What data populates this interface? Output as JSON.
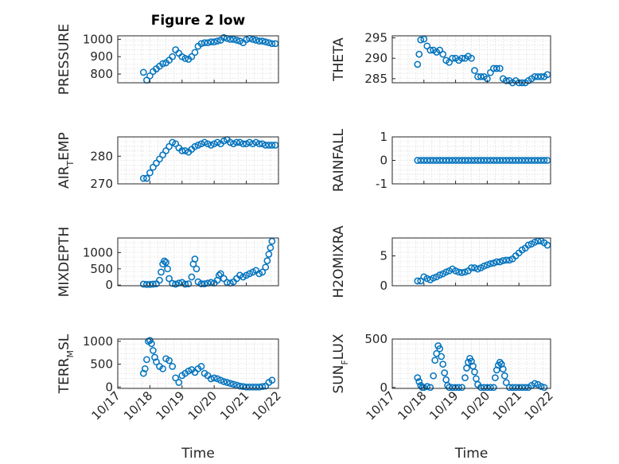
{
  "figure": {
    "title": "Figure 2 low"
  },
  "colors": {
    "marker": "#0072BD",
    "axis": "#262626",
    "grid": "#dcdcdc",
    "background": "#ffffff"
  },
  "chart_data": [
    {
      "id": "pressure",
      "type": "scatter",
      "title": "Figure 2 low",
      "ylabel": "PRESSURE",
      "xlim": [
        0,
        5
      ],
      "ylim": [
        750,
        1020
      ],
      "yticks": [
        800,
        900,
        1000
      ],
      "xticklabels": [],
      "xlabel": "",
      "x": [
        0.8,
        0.9,
        1.0,
        1.1,
        1.2,
        1.3,
        1.4,
        1.5,
        1.6,
        1.7,
        1.8,
        1.9,
        2.0,
        2.1,
        2.2,
        2.3,
        2.4,
        2.5,
        2.6,
        2.7,
        2.8,
        2.9,
        3.0,
        3.1,
        3.2,
        3.3,
        3.4,
        3.5,
        3.6,
        3.7,
        3.8,
        3.9,
        4.0,
        4.1,
        4.2,
        4.3,
        4.4,
        4.5,
        4.6,
        4.7,
        4.8,
        4.9
      ],
      "y": [
        810,
        765,
        790,
        815,
        830,
        845,
        860,
        865,
        880,
        900,
        940,
        920,
        900,
        890,
        885,
        900,
        925,
        960,
        975,
        980,
        980,
        985,
        985,
        990,
        995,
        1010,
        1005,
        1000,
        1000,
        995,
        990,
        980,
        998,
        1005,
        1000,
        995,
        990,
        990,
        985,
        980,
        975,
        975
      ]
    },
    {
      "id": "theta",
      "type": "scatter",
      "ylabel": "THETA",
      "xlim": [
        0,
        5
      ],
      "ylim": [
        284,
        295.5
      ],
      "yticks": [
        285,
        290,
        295
      ],
      "xticklabels": [],
      "xlabel": "",
      "x": [
        0.8,
        0.85,
        0.9,
        1.0,
        1.1,
        1.2,
        1.3,
        1.4,
        1.5,
        1.6,
        1.7,
        1.8,
        1.9,
        2.0,
        2.1,
        2.2,
        2.3,
        2.4,
        2.5,
        2.6,
        2.7,
        2.8,
        2.9,
        3.0,
        3.1,
        3.2,
        3.3,
        3.4,
        3.5,
        3.6,
        3.7,
        3.8,
        3.9,
        4.0,
        4.1,
        4.2,
        4.3,
        4.4,
        4.5,
        4.6,
        4.7,
        4.8,
        4.9
      ],
      "y": [
        288.5,
        291,
        294.5,
        294.7,
        293,
        292,
        292,
        291.5,
        292,
        291,
        289.5,
        289,
        290,
        290,
        289.5,
        290,
        290,
        290.5,
        290,
        287,
        285.5,
        285.5,
        285.5,
        285,
        286.5,
        287.5,
        287.5,
        287.5,
        285,
        284.5,
        284.5,
        284,
        284.5,
        284,
        284,
        284,
        284.5,
        285,
        285.5,
        285.5,
        285.5,
        285.5,
        286
      ]
    },
    {
      "id": "air_temp",
      "type": "scatter",
      "ylabel": "AIR",
      "ylabel_sub": "T",
      "ylabel_tail": "EMP",
      "xlim": [
        0,
        5
      ],
      "ylim": [
        270,
        287
      ],
      "yticks": [
        270,
        280
      ],
      "xticklabels": [],
      "xlabel": "",
      "x": [
        0.8,
        0.9,
        1.0,
        1.1,
        1.2,
        1.3,
        1.4,
        1.5,
        1.6,
        1.7,
        1.8,
        1.9,
        2.0,
        2.1,
        2.2,
        2.3,
        2.4,
        2.5,
        2.6,
        2.7,
        2.8,
        2.9,
        3.0,
        3.1,
        3.2,
        3.3,
        3.4,
        3.5,
        3.6,
        3.7,
        3.8,
        3.9,
        4.0,
        4.1,
        4.2,
        4.3,
        4.4,
        4.5,
        4.6,
        4.7,
        4.8,
        4.9
      ],
      "y": [
        272,
        272,
        274,
        276,
        277.5,
        279,
        280.5,
        282,
        283.5,
        285,
        284.5,
        283,
        282,
        282,
        281.5,
        282.5,
        283.5,
        284,
        284.5,
        285,
        284.5,
        284,
        284.5,
        285,
        284.5,
        285.5,
        286,
        285,
        284.5,
        285,
        285,
        284.5,
        284.5,
        285,
        284.5,
        285,
        284.5,
        284.5,
        284,
        284,
        284,
        284
      ]
    },
    {
      "id": "rainfall",
      "type": "scatter",
      "ylabel": "RAINFALL",
      "xlim": [
        0,
        5
      ],
      "ylim": [
        -1,
        1
      ],
      "yticks": [
        -1,
        0,
        1
      ],
      "xticklabels": [],
      "xlabel": "",
      "x": [
        0.8,
        0.9,
        1.0,
        1.1,
        1.2,
        1.3,
        1.4,
        1.5,
        1.6,
        1.7,
        1.8,
        1.9,
        2.0,
        2.1,
        2.2,
        2.3,
        2.4,
        2.5,
        2.6,
        2.7,
        2.8,
        2.9,
        3.0,
        3.1,
        3.2,
        3.3,
        3.4,
        3.5,
        3.6,
        3.7,
        3.8,
        3.9,
        4.0,
        4.1,
        4.2,
        4.3,
        4.4,
        4.5,
        4.6,
        4.7,
        4.8,
        4.9
      ],
      "y": [
        0,
        0,
        0,
        0,
        0,
        0,
        0,
        0,
        0,
        0,
        0,
        0,
        0,
        0,
        0,
        0,
        0,
        0,
        0,
        0,
        0,
        0,
        0,
        0,
        0,
        0,
        0,
        0,
        0,
        0,
        0,
        0,
        0,
        0,
        0,
        0,
        0,
        0,
        0,
        0,
        0,
        0
      ]
    },
    {
      "id": "mixdepth",
      "type": "scatter",
      "ylabel": "MIXDEPTH",
      "xlim": [
        0,
        5
      ],
      "ylim": [
        -20,
        1450
      ],
      "yticks": [
        0,
        500,
        1000
      ],
      "xticklabels": [],
      "xlabel": "",
      "x": [
        0.8,
        0.9,
        1.0,
        1.1,
        1.2,
        1.3,
        1.35,
        1.4,
        1.45,
        1.5,
        1.55,
        1.6,
        1.7,
        1.8,
        1.9,
        2.0,
        2.1,
        2.2,
        2.3,
        2.35,
        2.4,
        2.45,
        2.5,
        2.6,
        2.7,
        2.8,
        2.9,
        3.0,
        3.1,
        3.15,
        3.2,
        3.3,
        3.4,
        3.5,
        3.6,
        3.7,
        3.8,
        3.9,
        4.0,
        4.1,
        4.2,
        4.3,
        4.4,
        4.5,
        4.6,
        4.65,
        4.7,
        4.75,
        4.8
      ],
      "y": [
        30,
        20,
        20,
        30,
        40,
        150,
        400,
        650,
        740,
        700,
        500,
        200,
        50,
        30,
        60,
        80,
        30,
        40,
        250,
        650,
        800,
        500,
        100,
        40,
        40,
        60,
        80,
        60,
        150,
        300,
        350,
        200,
        80,
        60,
        100,
        200,
        300,
        250,
        300,
        350,
        400,
        450,
        350,
        400,
        550,
        750,
        950,
        1150,
        1350
      ]
    },
    {
      "id": "h2omixra",
      "type": "scatter",
      "ylabel": "H2OMIXRA",
      "xlim": [
        0,
        5
      ],
      "ylim": [
        0,
        8
      ],
      "yticks": [
        0,
        5
      ],
      "xticklabels": [],
      "xlabel": "",
      "x": [
        0.8,
        0.9,
        1.0,
        1.1,
        1.2,
        1.3,
        1.4,
        1.5,
        1.6,
        1.7,
        1.8,
        1.9,
        2.0,
        2.1,
        2.2,
        2.3,
        2.4,
        2.5,
        2.6,
        2.7,
        2.8,
        2.9,
        3.0,
        3.1,
        3.2,
        3.3,
        3.4,
        3.5,
        3.6,
        3.7,
        3.8,
        3.9,
        4.0,
        4.1,
        4.2,
        4.3,
        4.4,
        4.5,
        4.6,
        4.7,
        4.8,
        4.9
      ],
      "y": [
        0.8,
        0.8,
        1.5,
        1.2,
        1.0,
        1.3,
        1.5,
        1.8,
        2.0,
        2.3,
        2.5,
        2.8,
        2.5,
        2.3,
        2.2,
        2.3,
        2.5,
        3.0,
        3.0,
        2.8,
        3.0,
        3.3,
        3.5,
        3.7,
        3.8,
        4.0,
        4.0,
        4.2,
        4.3,
        4.3,
        4.5,
        5.0,
        5.5,
        6.0,
        6.3,
        6.8,
        7.0,
        7.3,
        7.5,
        7.5,
        7.2,
        6.8
      ]
    },
    {
      "id": "terr_msl",
      "type": "scatter",
      "ylabel": "TERR",
      "ylabel_sub": "M",
      "ylabel_tail": "SL",
      "xlim": [
        0,
        5
      ],
      "ylim": [
        -30,
        1050
      ],
      "yticks": [
        0,
        500,
        1000
      ],
      "xticklabels": [
        "10/17",
        "10/18",
        "10/19",
        "10/20",
        "10/21",
        "10/22"
      ],
      "xlabel": "Time",
      "x": [
        0.8,
        0.85,
        0.9,
        0.95,
        1.0,
        1.05,
        1.1,
        1.15,
        1.2,
        1.3,
        1.4,
        1.5,
        1.6,
        1.7,
        1.8,
        1.9,
        2.0,
        2.1,
        2.2,
        2.3,
        2.4,
        2.5,
        2.6,
        2.7,
        2.8,
        2.9,
        3.0,
        3.1,
        3.2,
        3.3,
        3.4,
        3.5,
        3.6,
        3.7,
        3.8,
        3.9,
        4.0,
        4.1,
        4.2,
        4.3,
        4.4,
        4.5,
        4.6,
        4.7,
        4.8
      ],
      "y": [
        300,
        400,
        600,
        1000,
        1020,
        950,
        800,
        650,
        550,
        450,
        400,
        620,
        580,
        450,
        200,
        100,
        250,
        300,
        350,
        380,
        320,
        400,
        450,
        300,
        250,
        180,
        200,
        180,
        150,
        120,
        100,
        80,
        60,
        40,
        20,
        10,
        0,
        0,
        0,
        0,
        0,
        10,
        20,
        100,
        150
      ]
    },
    {
      "id": "sun_flux",
      "type": "scatter",
      "ylabel": "SUN",
      "ylabel_sub": "F",
      "ylabel_tail": "LUX",
      "xlim": [
        0,
        5
      ],
      "ylim": [
        -10,
        500
      ],
      "yticks": [
        0,
        500
      ],
      "xticklabels": [
        "10/17",
        "10/18",
        "10/19",
        "10/20",
        "10/21",
        "10/22"
      ],
      "xlabel": "Time",
      "x": [
        0.8,
        0.85,
        0.9,
        0.95,
        1.0,
        1.1,
        1.2,
        1.3,
        1.35,
        1.4,
        1.45,
        1.5,
        1.55,
        1.6,
        1.65,
        1.7,
        1.75,
        1.8,
        1.9,
        2.0,
        2.1,
        2.2,
        2.3,
        2.35,
        2.4,
        2.45,
        2.5,
        2.55,
        2.6,
        2.65,
        2.7,
        2.8,
        2.9,
        3.0,
        3.1,
        3.2,
        3.25,
        3.3,
        3.35,
        3.4,
        3.45,
        3.5,
        3.55,
        3.6,
        3.7,
        3.8,
        3.9,
        4.0,
        4.1,
        4.2,
        4.3,
        4.4,
        4.5,
        4.6,
        4.7,
        4.8
      ],
      "y": [
        100,
        60,
        20,
        0,
        0,
        10,
        0,
        120,
        280,
        350,
        430,
        400,
        320,
        240,
        150,
        80,
        20,
        0,
        0,
        0,
        0,
        0,
        100,
        200,
        260,
        300,
        270,
        220,
        160,
        90,
        30,
        0,
        0,
        0,
        0,
        0,
        100,
        180,
        230,
        260,
        240,
        190,
        120,
        50,
        0,
        0,
        0,
        0,
        0,
        0,
        0,
        20,
        40,
        30,
        10,
        0
      ]
    }
  ]
}
